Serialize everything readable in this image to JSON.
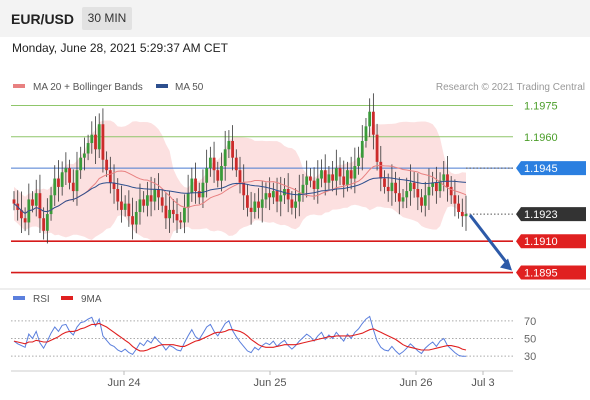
{
  "header": {
    "symbol": "EUR/USD",
    "timeframe": "30 MIN",
    "datetime": "Monday, June 28, 2021 5:29:37 AM CET"
  },
  "colors": {
    "bull": "#3a9a3a",
    "bear": "#cc2b2b",
    "ma20": "#e88080",
    "ma50": "#2d4f8e",
    "band_fill": "#fbdada",
    "resistance_line": "#8fc66a",
    "resistance_text": "#4b9e2a",
    "pivot_line": "#4a7bd0",
    "pivot_badge": "#2b7fe0",
    "support_line": "#d61a1a",
    "support_badge": "#e02020",
    "current_badge": "#333333",
    "arrow": "#2d5aa8",
    "rsi": "#5b7fdd",
    "rsi_ma": "#e02020"
  },
  "chart_data": [
    {
      "type": "candlestick",
      "title": "EUR/USD",
      "legend": [
        {
          "name": "MA 20 + Bollinger Bands",
          "color": "#e88080"
        },
        {
          "name": "MA 50",
          "color": "#2d4f8e"
        }
      ],
      "legend_position": "top-left",
      "credit": "Research © 2021 Trading Central",
      "x_ticks": [
        "Jun 24",
        "Jun 25",
        "Jun 26",
        "Jul 3"
      ],
      "ylim": [
        1.189,
        1.198
      ],
      "y_axis_side": "right",
      "levels": [
        {
          "label": "1.1975",
          "value": 1.1975,
          "kind": "resistance"
        },
        {
          "label": "1.1960",
          "value": 1.196,
          "kind": "resistance"
        },
        {
          "label": "1.1945",
          "value": 1.1945,
          "kind": "pivot"
        },
        {
          "label": "1.1923",
          "value": 1.1923,
          "kind": "current"
        },
        {
          "label": "1.1910",
          "value": 1.191,
          "kind": "support"
        },
        {
          "label": "1.1895",
          "value": 1.1895,
          "kind": "support"
        }
      ],
      "closes": [
        1.1928,
        1.1925,
        1.1921,
        1.1919,
        1.193,
        1.1927,
        1.1933,
        1.1921,
        1.1915,
        1.1923,
        1.1932,
        1.194,
        1.1936,
        1.1943,
        1.1945,
        1.1938,
        1.1934,
        1.1944,
        1.195,
        1.1952,
        1.1957,
        1.1961,
        1.1954,
        1.1966,
        1.1949,
        1.1944,
        1.1938,
        1.1935,
        1.1929,
        1.1925,
        1.1928,
        1.1922,
        1.1918,
        1.1924,
        1.193,
        1.1927,
        1.1932,
        1.1929,
        1.1935,
        1.1931,
        1.1927,
        1.1921,
        1.1925,
        1.1923,
        1.192,
        1.1919,
        1.1926,
        1.1933,
        1.194,
        1.1934,
        1.1931,
        1.1938,
        1.1945,
        1.195,
        1.1944,
        1.1939,
        1.1946,
        1.1954,
        1.1958,
        1.195,
        1.1944,
        1.1938,
        1.1932,
        1.1926,
        1.1924,
        1.1929,
        1.1926,
        1.193,
        1.1933,
        1.1931,
        1.1934,
        1.1929,
        1.1932,
        1.1935,
        1.193,
        1.1926,
        1.1929,
        1.1933,
        1.1937,
        1.1941,
        1.1939,
        1.1935,
        1.194,
        1.1944,
        1.1938,
        1.1942,
        1.1939,
        1.1945,
        1.1941,
        1.1937,
        1.1944,
        1.194,
        1.1946,
        1.195,
        1.1958,
        1.1965,
        1.1972,
        1.1961,
        1.1948,
        1.194,
        1.1936,
        1.1934,
        1.1938,
        1.1933,
        1.1929,
        1.1931,
        1.1934,
        1.1938,
        1.1935,
        1.1931,
        1.1927,
        1.1932,
        1.1936,
        1.1938,
        1.1934,
        1.1939,
        1.1942,
        1.1936,
        1.1932,
        1.1928,
        1.1924,
        1.1922,
        1.1923
      ]
    },
    {
      "type": "line",
      "title": "RSI",
      "legend": [
        {
          "name": "RSI",
          "color": "#5b7fdd"
        },
        {
          "name": "9MA",
          "color": "#e02020"
        }
      ],
      "legend_position": "top-left",
      "ylim": [
        20,
        80
      ],
      "y_ticks": [
        70,
        50,
        30
      ],
      "y_axis_side": "right",
      "series": [
        {
          "name": "RSI",
          "values": [
            47,
            44,
            42,
            40,
            55,
            50,
            58,
            45,
            39,
            47,
            56,
            63,
            58,
            65,
            66,
            58,
            54,
            63,
            68,
            69,
            72,
            74,
            64,
            72,
            53,
            48,
            43,
            41,
            37,
            35,
            38,
            34,
            32,
            38,
            45,
            42,
            48,
            45,
            52,
            47,
            43,
            37,
            42,
            40,
            37,
            36,
            45,
            53,
            60,
            52,
            49,
            56,
            63,
            66,
            58,
            53,
            60,
            67,
            70,
            59,
            52,
            46,
            41,
            36,
            34,
            40,
            37,
            42,
            45,
            43,
            47,
            41,
            45,
            48,
            42,
            38,
            42,
            47,
            51,
            55,
            52,
            47,
            53,
            57,
            49,
            54,
            50,
            57,
            52,
            47,
            55,
            50,
            57,
            61,
            67,
            72,
            75,
            60,
            47,
            40,
            37,
            36,
            41,
            36,
            32,
            35,
            39,
            44,
            40,
            36,
            33,
            39,
            43,
            46,
            41,
            47,
            50,
            42,
            38,
            34,
            31,
            30,
            30
          ]
        },
        {
          "name": "9MA",
          "values": [
            47,
            46,
            45,
            44,
            46,
            46,
            48,
            47,
            46,
            46,
            48,
            50,
            52,
            55,
            57,
            58,
            58,
            59,
            61,
            62,
            64,
            66,
            66,
            67,
            65,
            63,
            60,
            57,
            54,
            51,
            48,
            45,
            41,
            38,
            36,
            36,
            37,
            39,
            40,
            42,
            43,
            43,
            43,
            43,
            42,
            41,
            41,
            43,
            45,
            47,
            48,
            50,
            52,
            54,
            56,
            57,
            57,
            58,
            60,
            60,
            59,
            58,
            56,
            53,
            49,
            46,
            43,
            41,
            40,
            40,
            40,
            41,
            42,
            43,
            43,
            43,
            43,
            44,
            45,
            46,
            47,
            48,
            49,
            50,
            51,
            52,
            52,
            53,
            53,
            53,
            53,
            53,
            54,
            55,
            56,
            58,
            60,
            61,
            59,
            57,
            55,
            53,
            51,
            49,
            46,
            43,
            41,
            40,
            39,
            38,
            37,
            37,
            37,
            38,
            39,
            40,
            41,
            42,
            42,
            41,
            40,
            38,
            37
          ]
        }
      ]
    }
  ]
}
